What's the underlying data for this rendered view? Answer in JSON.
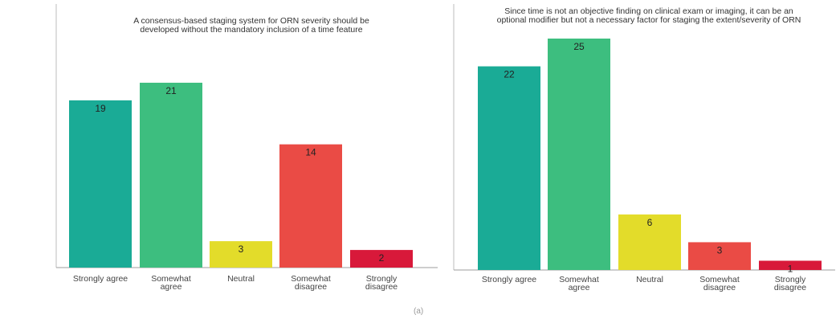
{
  "chart_data": [
    {
      "type": "bar",
      "title_lines": [
        "A consensus-based staging system for ORN severity should be",
        "developed without the mandatory inclusion of a time feature"
      ],
      "categories": [
        [
          "Strongly agree"
        ],
        [
          "Somewhat",
          "agree"
        ],
        [
          "Neutral"
        ],
        [
          "Somewhat",
          "disagree"
        ],
        [
          "Strongly",
          "disagree"
        ]
      ],
      "values": [
        19,
        21,
        3,
        14,
        2
      ],
      "colors": [
        "#1aab96",
        "#3dbe7f",
        "#e3dc2a",
        "#ea4b45",
        "#d8193a"
      ],
      "ylim": [
        0,
        22
      ],
      "grid": false,
      "legend": "none"
    },
    {
      "type": "bar",
      "title_lines": [
        "Since time is not an objective finding on clinical exam or imaging, it can be an",
        "optional modifier but not a necessary factor for staging the extent/severity of ORN"
      ],
      "categories": [
        [
          "Strongly agree"
        ],
        [
          "Somewhat",
          "agree"
        ],
        [
          "Neutral"
        ],
        [
          "Somewhat",
          "disagree"
        ],
        [
          "Strongly",
          "disagree"
        ]
      ],
      "values": [
        22,
        25,
        6,
        3,
        1
      ],
      "colors": [
        "#1aab96",
        "#3dbe7f",
        "#e3dc2a",
        "#ea4b45",
        "#d8193a"
      ],
      "ylim": [
        0,
        25
      ],
      "grid": false,
      "legend": "none"
    }
  ],
  "footnote": "(a)"
}
